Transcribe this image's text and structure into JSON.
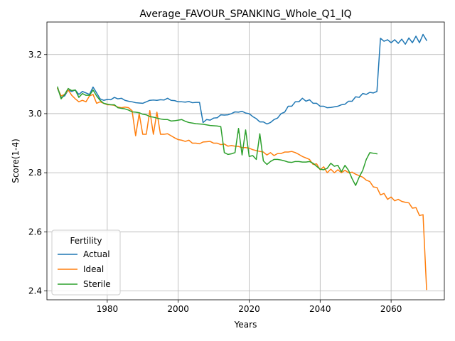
{
  "chart_data": {
    "type": "line",
    "title": "Average_FAVOUR_SPANKING_Whole_Q1_IQ",
    "xlabel": "Years",
    "ylabel": "Score(1-4)",
    "xlim": [
      1963,
      2075
    ],
    "ylim": [
      2.37,
      3.31
    ],
    "x_ticks": [
      1980,
      2000,
      2020,
      2040,
      2060
    ],
    "y_ticks": [
      2.4,
      2.6,
      2.8,
      3.0,
      3.2
    ],
    "x_tick_labels": [
      "1980",
      "2000",
      "2020",
      "2040",
      "2060"
    ],
    "y_tick_labels": [
      "2.4",
      "2.6",
      "2.8",
      "3.0",
      "3.2"
    ],
    "grid": true,
    "legend": {
      "title": "Fertility",
      "placement": "lower-left"
    },
    "series": [
      {
        "name": "Actual",
        "color": "#1f77b4",
        "points": [
          [
            1966,
            3.085
          ],
          [
            1967,
            3.055
          ],
          [
            1968,
            3.06
          ],
          [
            1969,
            3.08
          ],
          [
            1970,
            3.075
          ],
          [
            1971,
            3.08
          ],
          [
            1972,
            3.065
          ],
          [
            1973,
            3.075
          ],
          [
            1974,
            3.07
          ],
          [
            1975,
            3.065
          ],
          [
            1976,
            3.09
          ],
          [
            1977,
            3.07
          ],
          [
            1978,
            3.05
          ],
          [
            1979,
            3.045
          ],
          [
            1980,
            3.048
          ],
          [
            1981,
            3.047
          ],
          [
            1982,
            3.055
          ],
          [
            1983,
            3.05
          ],
          [
            1984,
            3.052
          ],
          [
            1985,
            3.045
          ],
          [
            1986,
            3.042
          ],
          [
            1987,
            3.04
          ],
          [
            1988,
            3.037
          ],
          [
            1989,
            3.036
          ],
          [
            1990,
            3.035
          ],
          [
            1991,
            3.04
          ],
          [
            1992,
            3.045
          ],
          [
            1993,
            3.046
          ],
          [
            1994,
            3.045
          ],
          [
            1995,
            3.047
          ],
          [
            1996,
            3.046
          ],
          [
            1997,
            3.052
          ],
          [
            1998,
            3.045
          ],
          [
            1999,
            3.044
          ],
          [
            2000,
            3.04
          ],
          [
            2001,
            3.04
          ],
          [
            2002,
            3.039
          ],
          [
            2003,
            3.041
          ],
          [
            2004,
            3.037
          ],
          [
            2005,
            3.038
          ],
          [
            2006,
            3.038
          ],
          [
            2007,
            2.97
          ],
          [
            2008,
            2.98
          ],
          [
            2009,
            2.978
          ],
          [
            2010,
            2.985
          ],
          [
            2011,
            2.986
          ],
          [
            2012,
            2.996
          ],
          [
            2013,
            2.995
          ],
          [
            2014,
            2.996
          ],
          [
            2015,
            3.0
          ],
          [
            2016,
            3.006
          ],
          [
            2017,
            3.005
          ],
          [
            2018,
            3.008
          ],
          [
            2019,
            3.002
          ],
          [
            2020,
            3.0
          ],
          [
            2021,
            2.99
          ],
          [
            2022,
            2.983
          ],
          [
            2023,
            2.972
          ],
          [
            2024,
            2.972
          ],
          [
            2025,
            2.965
          ],
          [
            2026,
            2.97
          ],
          [
            2027,
            2.98
          ],
          [
            2028,
            2.985
          ],
          [
            2029,
            3.0
          ],
          [
            2030,
            3.005
          ],
          [
            2031,
            3.025
          ],
          [
            2032,
            3.025
          ],
          [
            2033,
            3.04
          ],
          [
            2034,
            3.04
          ],
          [
            2035,
            3.052
          ],
          [
            2036,
            3.042
          ],
          [
            2037,
            3.047
          ],
          [
            2038,
            3.035
          ],
          [
            2039,
            3.035
          ],
          [
            2040,
            3.025
          ],
          [
            2041,
            3.025
          ],
          [
            2042,
            3.02
          ],
          [
            2043,
            3.021
          ],
          [
            2044,
            3.023
          ],
          [
            2045,
            3.025
          ],
          [
            2046,
            3.03
          ],
          [
            2047,
            3.032
          ],
          [
            2048,
            3.042
          ],
          [
            2049,
            3.042
          ],
          [
            2050,
            3.057
          ],
          [
            2051,
            3.055
          ],
          [
            2052,
            3.068
          ],
          [
            2053,
            3.065
          ],
          [
            2054,
            3.072
          ],
          [
            2055,
            3.07
          ],
          [
            2056,
            3.075
          ],
          [
            2057,
            3.255
          ],
          [
            2058,
            3.245
          ],
          [
            2059,
            3.25
          ],
          [
            2060,
            3.24
          ],
          [
            2061,
            3.25
          ],
          [
            2062,
            3.238
          ],
          [
            2063,
            3.252
          ],
          [
            2064,
            3.235
          ],
          [
            2065,
            3.256
          ],
          [
            2066,
            3.24
          ],
          [
            2067,
            3.262
          ],
          [
            2068,
            3.24
          ],
          [
            2069,
            3.268
          ],
          [
            2070,
            3.248
          ]
        ]
      },
      {
        "name": "Ideal",
        "color": "#ff7f0e",
        "points": [
          [
            1966,
            3.085
          ],
          [
            1967,
            3.06
          ],
          [
            1968,
            3.065
          ],
          [
            1969,
            3.08
          ],
          [
            1970,
            3.062
          ],
          [
            1971,
            3.05
          ],
          [
            1972,
            3.04
          ],
          [
            1973,
            3.045
          ],
          [
            1974,
            3.04
          ],
          [
            1975,
            3.06
          ],
          [
            1976,
            3.065
          ],
          [
            1977,
            3.035
          ],
          [
            1978,
            3.04
          ],
          [
            1979,
            3.035
          ],
          [
            1980,
            3.03
          ],
          [
            1981,
            3.03
          ],
          [
            1982,
            3.028
          ],
          [
            1983,
            3.022
          ],
          [
            1984,
            3.02
          ],
          [
            1985,
            3.022
          ],
          [
            1986,
            3.02
          ],
          [
            1987,
            3.01
          ],
          [
            1988,
            2.925
          ],
          [
            1989,
            3.0
          ],
          [
            1990,
            2.93
          ],
          [
            1991,
            2.93
          ],
          [
            1992,
            3.01
          ],
          [
            1993,
            2.93
          ],
          [
            1994,
            3.005
          ],
          [
            1995,
            2.93
          ],
          [
            1996,
            2.93
          ],
          [
            1997,
            2.932
          ],
          [
            1998,
            2.925
          ],
          [
            1999,
            2.918
          ],
          [
            2000,
            2.912
          ],
          [
            2001,
            2.91
          ],
          [
            2002,
            2.906
          ],
          [
            2003,
            2.91
          ],
          [
            2004,
            2.9
          ],
          [
            2005,
            2.9
          ],
          [
            2006,
            2.898
          ],
          [
            2007,
            2.904
          ],
          [
            2008,
            2.905
          ],
          [
            2009,
            2.906
          ],
          [
            2010,
            2.9
          ],
          [
            2011,
            2.9
          ],
          [
            2012,
            2.895
          ],
          [
            2013,
            2.897
          ],
          [
            2014,
            2.89
          ],
          [
            2015,
            2.892
          ],
          [
            2016,
            2.89
          ],
          [
            2017,
            2.889
          ],
          [
            2018,
            2.885
          ],
          [
            2019,
            2.885
          ],
          [
            2020,
            2.883
          ],
          [
            2021,
            2.878
          ],
          [
            2022,
            2.875
          ],
          [
            2023,
            2.872
          ],
          [
            2024,
            2.87
          ],
          [
            2025,
            2.86
          ],
          [
            2026,
            2.868
          ],
          [
            2027,
            2.858
          ],
          [
            2028,
            2.865
          ],
          [
            2029,
            2.865
          ],
          [
            2030,
            2.87
          ],
          [
            2031,
            2.87
          ],
          [
            2032,
            2.872
          ],
          [
            2033,
            2.868
          ],
          [
            2034,
            2.862
          ],
          [
            2035,
            2.855
          ],
          [
            2036,
            2.85
          ],
          [
            2037,
            2.845
          ],
          [
            2038,
            2.828
          ],
          [
            2039,
            2.83
          ],
          [
            2040,
            2.81
          ],
          [
            2041,
            2.82
          ],
          [
            2042,
            2.8
          ],
          [
            2043,
            2.812
          ],
          [
            2044,
            2.8
          ],
          [
            2045,
            2.81
          ],
          [
            2046,
            2.8
          ],
          [
            2047,
            2.808
          ],
          [
            2048,
            2.8
          ],
          [
            2049,
            2.802
          ],
          [
            2050,
            2.795
          ],
          [
            2051,
            2.79
          ],
          [
            2052,
            2.785
          ],
          [
            2053,
            2.775
          ],
          [
            2054,
            2.77
          ],
          [
            2055,
            2.752
          ],
          [
            2056,
            2.75
          ],
          [
            2057,
            2.725
          ],
          [
            2058,
            2.73
          ],
          [
            2059,
            2.71
          ],
          [
            2060,
            2.718
          ],
          [
            2061,
            2.705
          ],
          [
            2062,
            2.71
          ],
          [
            2063,
            2.703
          ],
          [
            2064,
            2.7
          ],
          [
            2065,
            2.698
          ],
          [
            2066,
            2.68
          ],
          [
            2067,
            2.682
          ],
          [
            2068,
            2.655
          ],
          [
            2069,
            2.658
          ],
          [
            2070,
            2.405
          ]
        ]
      },
      {
        "name": "Sterile",
        "color": "#2ca02c",
        "points": [
          [
            1966,
            3.09
          ],
          [
            1967,
            3.05
          ],
          [
            1968,
            3.065
          ],
          [
            1969,
            3.085
          ],
          [
            1970,
            3.078
          ],
          [
            1971,
            3.08
          ],
          [
            1972,
            3.055
          ],
          [
            1973,
            3.068
          ],
          [
            1974,
            3.062
          ],
          [
            1975,
            3.062
          ],
          [
            1976,
            3.08
          ],
          [
            1977,
            3.06
          ],
          [
            1978,
            3.045
          ],
          [
            1979,
            3.035
          ],
          [
            1980,
            3.032
          ],
          [
            1981,
            3.03
          ],
          [
            1982,
            3.03
          ],
          [
            1983,
            3.02
          ],
          [
            1984,
            3.018
          ],
          [
            1985,
            3.016
          ],
          [
            1986,
            3.012
          ],
          [
            1987,
            3.006
          ],
          [
            1988,
            3.005
          ],
          [
            1989,
            3.003
          ],
          [
            1990,
            2.998
          ],
          [
            1991,
            2.996
          ],
          [
            1992,
            2.99
          ],
          [
            1993,
            2.988
          ],
          [
            1994,
            2.985
          ],
          [
            1995,
            2.982
          ],
          [
            1996,
            2.98
          ],
          [
            1997,
            2.98
          ],
          [
            1998,
            2.975
          ],
          [
            1999,
            2.976
          ],
          [
            2000,
            2.978
          ],
          [
            2001,
            2.98
          ],
          [
            2002,
            2.974
          ],
          [
            2003,
            2.97
          ],
          [
            2004,
            2.968
          ],
          [
            2005,
            2.966
          ],
          [
            2006,
            2.965
          ],
          [
            2007,
            2.964
          ],
          [
            2008,
            2.962
          ],
          [
            2009,
            2.96
          ],
          [
            2010,
            2.959
          ],
          [
            2011,
            2.958
          ],
          [
            2012,
            2.956
          ],
          [
            2013,
            2.868
          ],
          [
            2014,
            2.862
          ],
          [
            2015,
            2.864
          ],
          [
            2016,
            2.868
          ],
          [
            2017,
            2.95
          ],
          [
            2018,
            2.86
          ],
          [
            2019,
            2.945
          ],
          [
            2020,
            2.855
          ],
          [
            2021,
            2.858
          ],
          [
            2022,
            2.845
          ],
          [
            2023,
            2.932
          ],
          [
            2024,
            2.84
          ],
          [
            2025,
            2.828
          ],
          [
            2026,
            2.838
          ],
          [
            2027,
            2.845
          ],
          [
            2028,
            2.845
          ],
          [
            2029,
            2.843
          ],
          [
            2030,
            2.84
          ],
          [
            2031,
            2.836
          ],
          [
            2032,
            2.835
          ],
          [
            2033,
            2.838
          ],
          [
            2034,
            2.838
          ],
          [
            2035,
            2.836
          ],
          [
            2036,
            2.836
          ],
          [
            2037,
            2.838
          ],
          [
            2038,
            2.832
          ],
          [
            2039,
            2.822
          ],
          [
            2040,
            2.812
          ],
          [
            2041,
            2.81
          ],
          [
            2042,
            2.815
          ],
          [
            2043,
            2.832
          ],
          [
            2044,
            2.822
          ],
          [
            2045,
            2.825
          ],
          [
            2046,
            2.803
          ],
          [
            2047,
            2.825
          ],
          [
            2048,
            2.808
          ],
          [
            2049,
            2.78
          ],
          [
            2050,
            2.757
          ],
          [
            2051,
            2.785
          ],
          [
            2052,
            2.808
          ],
          [
            2053,
            2.845
          ],
          [
            2054,
            2.868
          ],
          [
            2055,
            2.866
          ],
          [
            2056,
            2.864
          ]
        ]
      }
    ]
  }
}
